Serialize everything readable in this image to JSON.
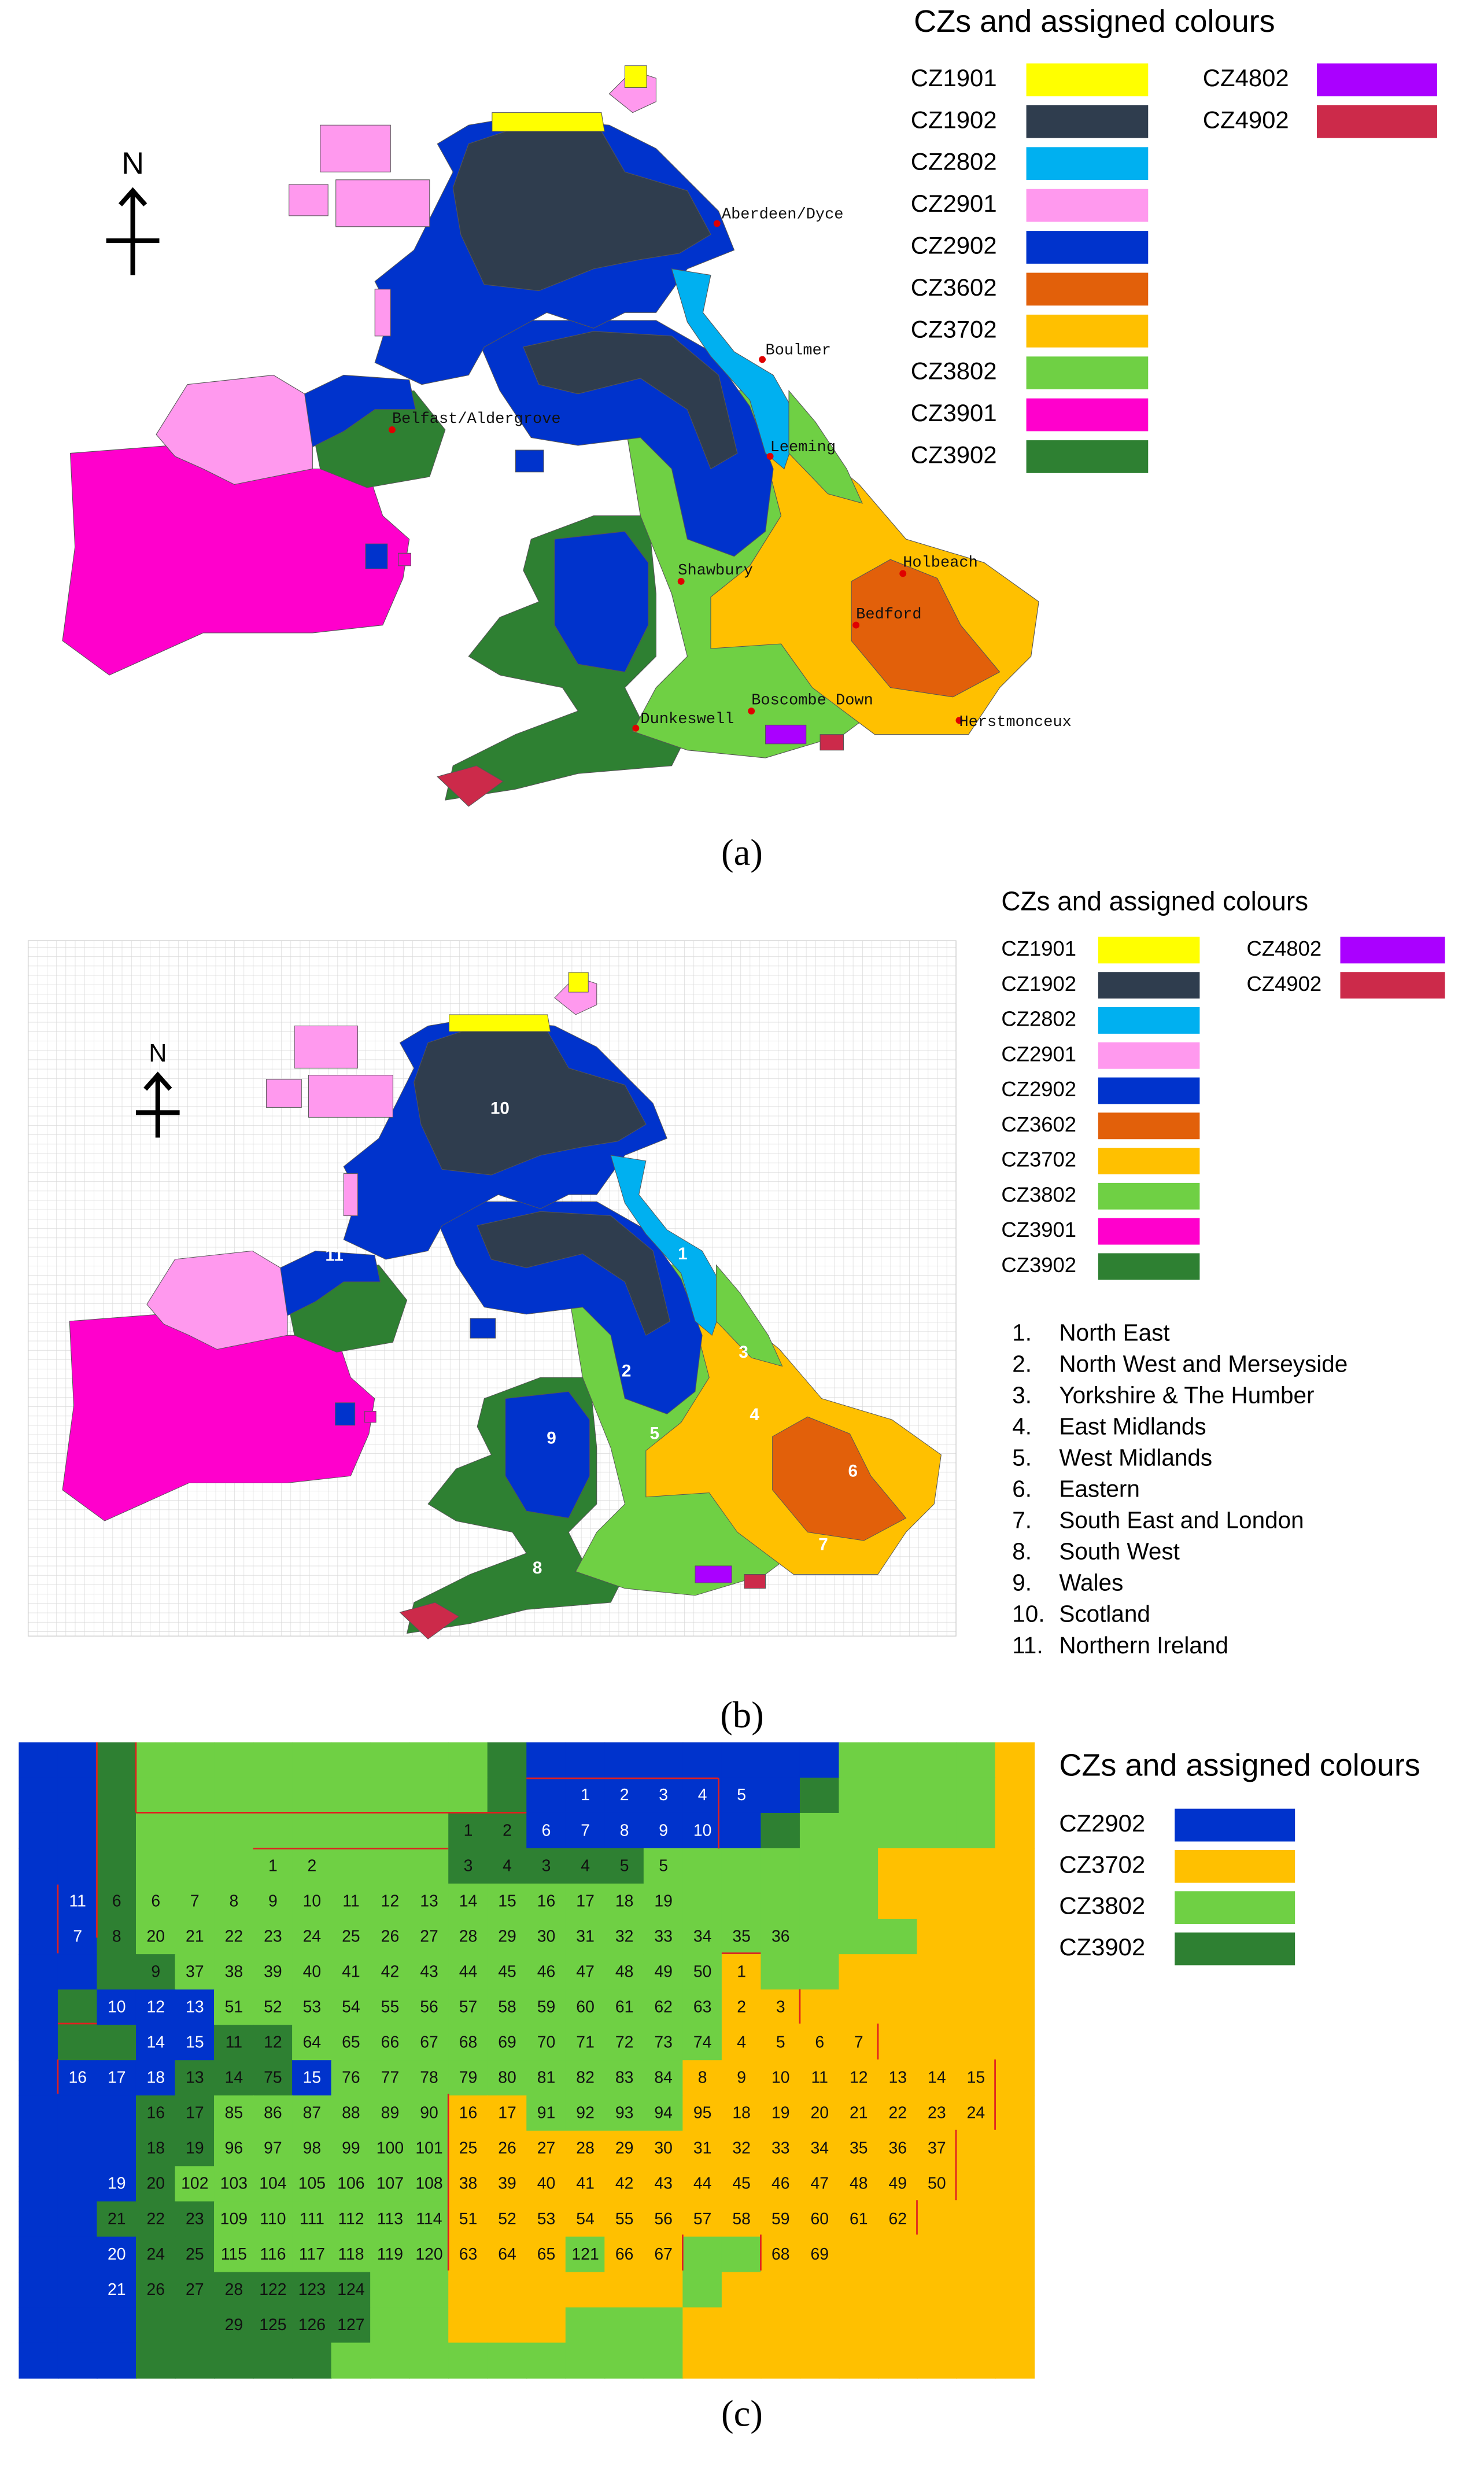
{
  "panel_a": {
    "legend": {
      "title": "CZs and assigned colours",
      "items": [
        {
          "label": "CZ1901",
          "color": "#ffff00"
        },
        {
          "label": "CZ1902",
          "color": "#2f3d4e"
        },
        {
          "label": "CZ2802",
          "color": "#00b0f0"
        },
        {
          "label": "CZ2901",
          "color": "#ff99ee"
        },
        {
          "label": "CZ2902",
          "color": "#0033cc"
        },
        {
          "label": "CZ3602",
          "color": "#e2600a"
        },
        {
          "label": "CZ3702",
          "color": "#ffc000"
        },
        {
          "label": "CZ3802",
          "color": "#6fd044"
        },
        {
          "label": "CZ3901",
          "color": "#ff00cc"
        },
        {
          "label": "CZ3902",
          "color": "#2e8032"
        },
        {
          "label": "CZ4802",
          "color": "#aa00ff"
        },
        {
          "label": "CZ4902",
          "color": "#cc2a4a"
        }
      ]
    },
    "north": "N",
    "stations": [
      "Aberdeen/Dyce",
      "Boulmer",
      "Belfast/Aldergrove",
      "Leeming",
      "Holbeach",
      "Shawbury",
      "Bedford",
      "Boscombe Down",
      "Dunkeswell",
      "Herstmonceux"
    ],
    "caption": "(a)"
  },
  "panel_b": {
    "legend": {
      "title": "CZs and assigned colours",
      "items": [
        {
          "label": "CZ1901",
          "color": "#ffff00"
        },
        {
          "label": "CZ1902",
          "color": "#2f3d4e"
        },
        {
          "label": "CZ2802",
          "color": "#00b0f0"
        },
        {
          "label": "CZ2901",
          "color": "#ff99ee"
        },
        {
          "label": "CZ2902",
          "color": "#0033cc"
        },
        {
          "label": "CZ3602",
          "color": "#e2600a"
        },
        {
          "label": "CZ3702",
          "color": "#ffc000"
        },
        {
          "label": "CZ3802",
          "color": "#6fd044"
        },
        {
          "label": "CZ3901",
          "color": "#ff00cc"
        },
        {
          "label": "CZ3902",
          "color": "#2e8032"
        },
        {
          "label": "CZ4802",
          "color": "#aa00ff"
        },
        {
          "label": "CZ4902",
          "color": "#cc2a4a"
        }
      ]
    },
    "north": "N",
    "regions": [
      {
        "number": 1,
        "list_label": "1.",
        "name": "North East"
      },
      {
        "number": 2,
        "list_label": "2.",
        "name": "North West and Merseyside"
      },
      {
        "number": 3,
        "list_label": "3.",
        "name": "Yorkshire & The Humber"
      },
      {
        "number": 4,
        "list_label": "4.",
        "name": "East Midlands"
      },
      {
        "number": 5,
        "list_label": "5.",
        "name": "West Midlands"
      },
      {
        "number": 6,
        "list_label": "6.",
        "name": "Eastern"
      },
      {
        "number": 7,
        "list_label": "7.",
        "name": "South East and London"
      },
      {
        "number": 8,
        "list_label": "8.",
        "name": "South West"
      },
      {
        "number": 9,
        "list_label": "9.",
        "name": "Wales"
      },
      {
        "number": 10,
        "list_label": "10.",
        "name": "Scotland"
      },
      {
        "number": 11,
        "list_label": "11.",
        "name": "Northern Ireland"
      }
    ],
    "caption": "(b)"
  },
  "panel_c": {
    "legend": {
      "title": "CZs and assigned colours",
      "items": [
        {
          "label": "CZ2902",
          "color": "#0033cc"
        },
        {
          "label": "CZ3702",
          "color": "#ffc000"
        },
        {
          "label": "CZ3802",
          "color": "#6fd044"
        },
        {
          "label": "CZ3902",
          "color": "#2e8032"
        }
      ]
    },
    "grid": {
      "rows": [
        [
          null,
          null,
          null,
          null,
          null,
          null,
          null,
          null,
          null,
          null,
          null,
          null,
          null,
          null,
          null,
          null,
          null,
          null,
          null,
          null,
          null,
          null,
          null,
          null,
          null,
          null
        ],
        [
          null,
          null,
          null,
          null,
          null,
          null,
          null,
          null,
          null,
          null,
          null,
          null,
          null,
          null,
          1,
          2,
          3,
          4,
          5,
          null,
          null,
          null,
          null,
          null,
          null,
          null
        ],
        [
          null,
          null,
          null,
          null,
          null,
          null,
          null,
          null,
          null,
          null,
          null,
          1,
          2,
          6,
          7,
          8,
          9,
          10,
          null,
          null,
          null,
          null,
          null,
          null,
          null,
          null
        ],
        [
          null,
          null,
          null,
          null,
          null,
          null,
          1,
          2,
          null,
          null,
          null,
          3,
          4,
          3,
          4,
          5,
          5,
          null,
          null,
          null,
          null,
          null,
          null,
          null,
          null,
          null
        ],
        [
          null,
          11,
          6,
          6,
          7,
          8,
          9,
          10,
          11,
          12,
          13,
          14,
          15,
          16,
          17,
          18,
          19,
          null,
          null,
          null,
          null,
          null,
          null,
          null,
          null,
          null
        ],
        [
          null,
          7,
          8,
          20,
          21,
          22,
          23,
          24,
          25,
          26,
          27,
          28,
          29,
          30,
          31,
          32,
          33,
          34,
          35,
          36,
          null,
          null,
          null,
          null,
          null,
          null
        ],
        [
          null,
          null,
          null,
          9,
          37,
          38,
          39,
          40,
          41,
          42,
          43,
          44,
          45,
          46,
          47,
          48,
          49,
          50,
          1,
          null,
          null,
          null,
          null,
          null,
          null,
          null
        ],
        [
          null,
          null,
          10,
          12,
          13,
          51,
          52,
          53,
          54,
          55,
          56,
          57,
          58,
          59,
          60,
          61,
          62,
          63,
          2,
          3,
          null,
          null,
          null,
          null,
          null,
          null
        ],
        [
          null,
          null,
          null,
          14,
          15,
          11,
          12,
          64,
          65,
          66,
          67,
          68,
          69,
          70,
          71,
          72,
          73,
          74,
          4,
          5,
          6,
          7,
          null,
          null,
          null,
          null
        ],
        [
          null,
          16,
          17,
          18,
          13,
          14,
          75,
          15,
          76,
          77,
          78,
          79,
          80,
          81,
          82,
          83,
          84,
          8,
          9,
          10,
          11,
          12,
          13,
          14,
          15,
          null
        ],
        [
          null,
          null,
          null,
          16,
          17,
          85,
          86,
          87,
          88,
          89,
          90,
          16,
          17,
          91,
          92,
          93,
          94,
          95,
          18,
          19,
          20,
          21,
          22,
          23,
          24,
          null
        ],
        [
          null,
          null,
          null,
          18,
          19,
          96,
          97,
          98,
          99,
          100,
          101,
          25,
          26,
          27,
          28,
          29,
          30,
          31,
          32,
          33,
          34,
          35,
          36,
          37,
          null,
          null
        ],
        [
          null,
          null,
          19,
          20,
          102,
          103,
          104,
          105,
          106,
          107,
          108,
          38,
          39,
          40,
          41,
          42,
          43,
          44,
          45,
          46,
          47,
          48,
          49,
          50,
          null,
          null
        ],
        [
          null,
          null,
          21,
          22,
          23,
          109,
          110,
          111,
          112,
          113,
          114,
          51,
          52,
          53,
          54,
          55,
          56,
          57,
          58,
          59,
          60,
          61,
          62,
          null,
          null,
          null
        ],
        [
          null,
          null,
          20,
          24,
          25,
          115,
          116,
          117,
          118,
          119,
          120,
          63,
          64,
          65,
          121,
          66,
          67,
          null,
          null,
          68,
          69,
          null,
          null,
          null,
          null,
          null
        ],
        [
          null,
          null,
          21,
          26,
          27,
          28,
          122,
          123,
          124,
          null,
          null,
          null,
          null,
          null,
          null,
          null,
          null,
          null,
          null,
          null,
          null,
          null,
          null,
          null,
          null,
          null
        ],
        [
          null,
          null,
          null,
          null,
          null,
          29,
          125,
          126,
          127,
          null,
          null,
          null,
          null,
          null,
          null,
          null,
          null,
          null,
          null,
          null,
          null,
          null,
          null,
          null,
          null,
          null
        ],
        [
          null,
          null,
          null,
          null,
          null,
          null,
          null,
          null,
          null,
          null,
          null,
          null,
          null,
          null,
          null,
          null,
          null,
          null,
          null,
          null,
          null,
          null,
          null,
          null,
          null,
          null
        ]
      ]
    },
    "caption": "(c)"
  }
}
